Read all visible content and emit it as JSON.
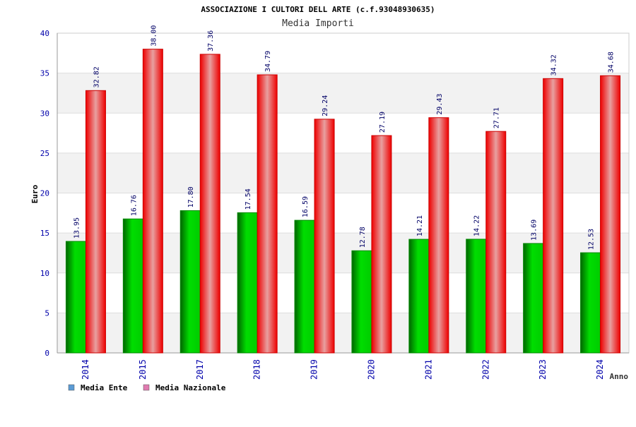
{
  "page": {
    "title": "ASSOCIAZIONE I CULTORI DELL ARTE (c.f.93048930635)",
    "subtitle": "Media Importi"
  },
  "chart_data": {
    "type": "bar",
    "title": "ASSOCIAZIONE I CULTORI DELL ARTE (c.f.93048930635)",
    "subtitle": "Media Importi",
    "xlabel": "Anno",
    "ylabel": "Euro",
    "categories": [
      "2014",
      "2015",
      "2017",
      "2018",
      "2019",
      "2020",
      "2021",
      "2022",
      "2023",
      "2024"
    ],
    "series": [
      {
        "name": "Media Ente",
        "color": "#00cc00",
        "legend_color": "#5b9bd5",
        "values": [
          13.95,
          16.76,
          17.8,
          17.54,
          16.59,
          12.78,
          14.21,
          14.22,
          13.69,
          12.53
        ],
        "labels": [
          "13.95",
          "16.76",
          "17.80",
          "17.54",
          "16.59",
          "12.78",
          "14.21",
          "14.22",
          "13.69",
          "12.53"
        ]
      },
      {
        "name": "Media Nazionale",
        "color": "#ff0000",
        "legend_color": "#e07bb0",
        "values": [
          32.82,
          38.0,
          37.36,
          34.79,
          29.24,
          27.19,
          29.43,
          27.71,
          34.32,
          34.68
        ],
        "labels": [
          "32.82",
          "38.00",
          "37.36",
          "34.79",
          "29.24",
          "27.19",
          "29.43",
          "27.71",
          "34.32",
          "34.68"
        ]
      }
    ],
    "ylim": [
      0,
      40
    ],
    "yticks": [
      "0",
      "5",
      "10",
      "15",
      "20",
      "25",
      "30",
      "35",
      "40"
    ],
    "grid": true,
    "legend_position": "bottom-left"
  }
}
